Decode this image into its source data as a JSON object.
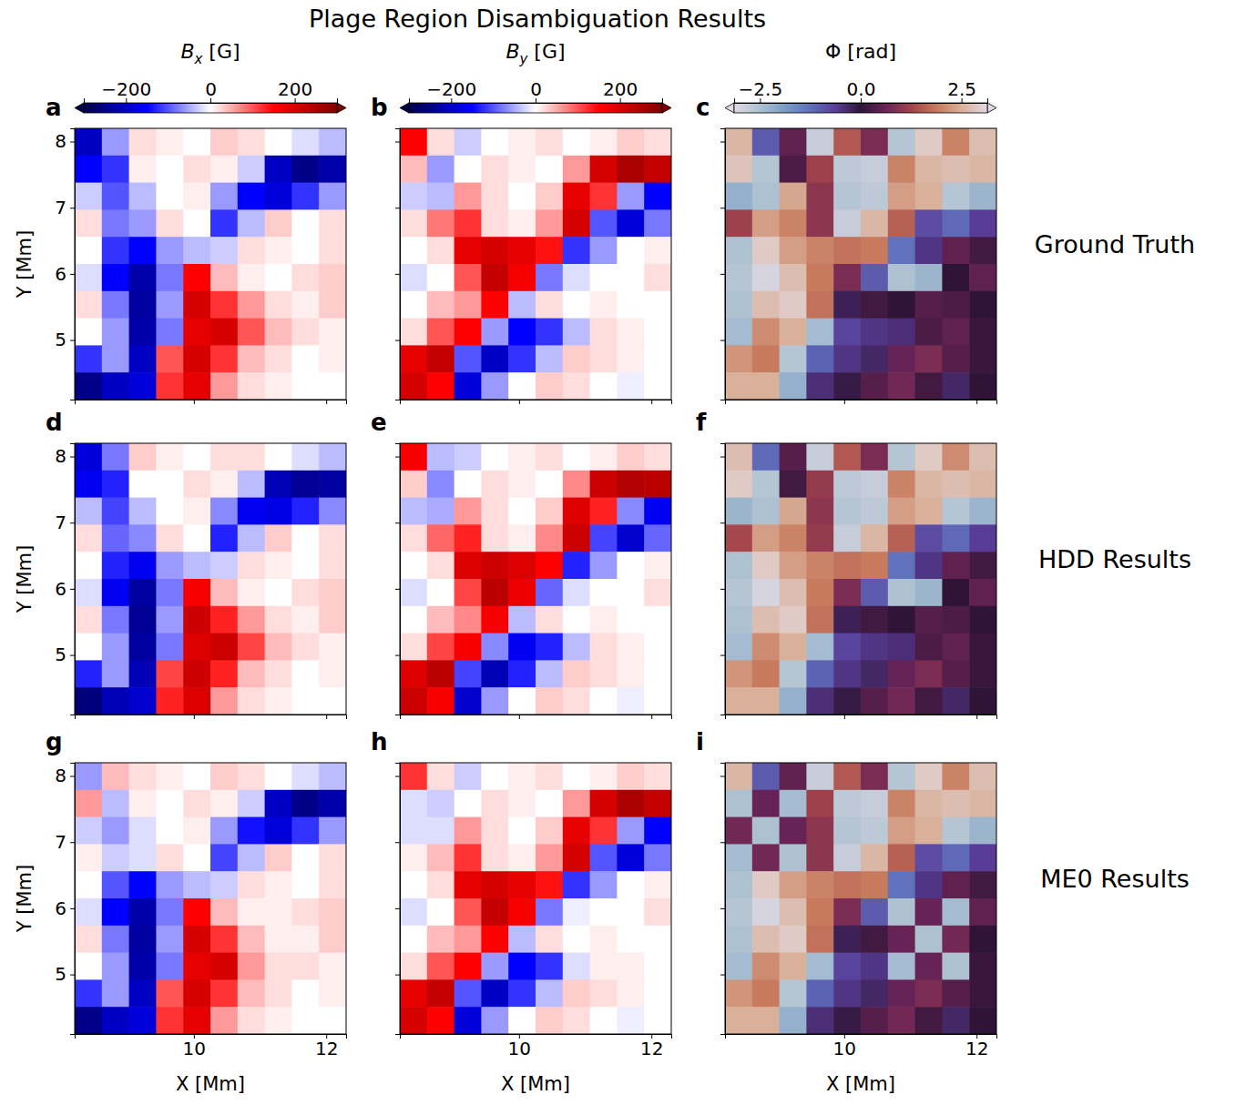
{
  "title": "Plage Region Disambiguation Results",
  "row_labels": [
    "Ground Truth",
    "HDD Results",
    "ME0 Results"
  ],
  "colorbars": [
    {
      "label": "Bx [G]",
      "range": [
        -300,
        300
      ],
      "ticks": [
        {
          "value": -200,
          "label": "−200"
        },
        0,
        200
      ]
    },
    {
      "label": "By [G]",
      "range": [
        -300,
        300
      ],
      "ticks": [
        {
          "value": -200,
          "label": "−200"
        },
        0,
        200
      ]
    },
    {
      "label": "Φ [rad]",
      "range": [
        -3.1416,
        3.1416
      ],
      "ticks": [
        {
          "value": -2.5,
          "label": "−2.5"
        },
        {
          "value": 0,
          "label": "0.0"
        },
        2.5
      ]
    }
  ],
  "chart_data": [
    {
      "type": "heatmap",
      "panel": "a",
      "xlim": [
        8.2,
        12.3
      ],
      "ylim": [
        4.1,
        8.2
      ],
      "xticks": [
        10,
        12
      ],
      "yticks": [
        5,
        6,
        7,
        8
      ],
      "tick_labels": "y",
      "ylabel": "Y [Mm]",
      "z": [
        [
          -200,
          -60,
          20,
          10,
          0,
          30,
          20,
          0,
          -20,
          -40
        ],
        [
          -150,
          -120,
          10,
          0,
          20,
          10,
          -30,
          -200,
          -250,
          -220
        ],
        [
          -30,
          -100,
          -40,
          0,
          10,
          -60,
          -150,
          -180,
          -120,
          -60
        ],
        [
          20,
          -80,
          -60,
          20,
          0,
          -120,
          -40,
          30,
          0,
          20
        ],
        [
          0,
          -120,
          -150,
          -60,
          -40,
          -30,
          20,
          10,
          0,
          20
        ],
        [
          -20,
          -150,
          -220,
          -80,
          150,
          40,
          10,
          0,
          20,
          30
        ],
        [
          20,
          -80,
          -230,
          -60,
          200,
          120,
          60,
          20,
          10,
          30
        ],
        [
          0,
          -60,
          -220,
          -80,
          180,
          200,
          100,
          40,
          20,
          10
        ],
        [
          -120,
          -60,
          -200,
          100,
          200,
          120,
          40,
          20,
          0,
          10
        ],
        [
          -250,
          -200,
          -180,
          120,
          180,
          60,
          20,
          10,
          0,
          0
        ]
      ]
    },
    {
      "type": "heatmap",
      "panel": "b",
      "xlim": [
        8.2,
        12.3
      ],
      "ylim": [
        4.1,
        8.2
      ],
      "xticks": [
        10,
        12
      ],
      "yticks": [
        5,
        6,
        7,
        8
      ],
      "tick_labels": false,
      "z": [
        [
          150,
          20,
          -30,
          0,
          10,
          20,
          0,
          10,
          30,
          20
        ],
        [
          40,
          -60,
          0,
          20,
          10,
          0,
          60,
          200,
          250,
          220
        ],
        [
          -30,
          -40,
          60,
          20,
          0,
          30,
          180,
          120,
          -60,
          -150
        ],
        [
          20,
          80,
          120,
          20,
          10,
          60,
          200,
          -100,
          -180,
          -80
        ],
        [
          0,
          20,
          180,
          200,
          180,
          140,
          -120,
          -60,
          0,
          10
        ],
        [
          -20,
          0,
          100,
          220,
          160,
          -80,
          -20,
          0,
          0,
          20
        ],
        [
          0,
          40,
          60,
          150,
          -40,
          20,
          0,
          10,
          0,
          0
        ],
        [
          20,
          100,
          150,
          -60,
          -150,
          -120,
          -40,
          20,
          10,
          0
        ],
        [
          180,
          220,
          -100,
          -200,
          -120,
          -40,
          30,
          20,
          10,
          0
        ],
        [
          200,
          150,
          -180,
          -60,
          0,
          30,
          20,
          0,
          -10,
          0
        ]
      ]
    },
    {
      "type": "heatmap",
      "panel": "c",
      "xlim": [
        8.2,
        12.3
      ],
      "ylim": [
        4.1,
        8.2
      ],
      "xticks": [
        10,
        12
      ],
      "yticks": [
        5,
        6,
        7,
        8
      ],
      "tick_labels": false,
      "z": [
        [
          2.6,
          -1.0,
          0.5,
          -2.8,
          1.5,
          0.8,
          -2.6,
          2.9,
          2.0,
          2.7
        ],
        [
          2.8,
          -2.6,
          0.3,
          1.2,
          -2.7,
          -2.8,
          2.0,
          2.6,
          2.7,
          2.6
        ],
        [
          -2.2,
          -2.5,
          2.4,
          1.0,
          -2.6,
          -2.7,
          2.3,
          2.5,
          -2.6,
          -2.3
        ],
        [
          1.2,
          2.3,
          2.0,
          1.0,
          -2.8,
          2.6,
          1.6,
          -0.8,
          -1.2,
          -0.6
        ],
        [
          -2.5,
          2.9,
          2.3,
          2.0,
          1.8,
          1.9,
          -1.3,
          -0.5,
          0.5,
          0.2
        ],
        [
          -2.6,
          -3.0,
          2.7,
          1.9,
          0.8,
          -1.0,
          -2.5,
          -2.3,
          0.0,
          0.5
        ],
        [
          -2.5,
          2.7,
          2.9,
          1.8,
          -0.2,
          0.2,
          0.0,
          0.4,
          0.3,
          0.0
        ],
        [
          -2.4,
          2.1,
          2.5,
          -2.4,
          -0.7,
          -0.5,
          -0.4,
          0.3,
          0.5,
          0.1
        ],
        [
          2.2,
          1.9,
          -2.6,
          -1.1,
          -0.5,
          -0.3,
          0.6,
          0.8,
          0.4,
          0.1
        ],
        [
          2.5,
          2.5,
          -2.2,
          -0.4,
          -0.1,
          0.4,
          0.7,
          0.2,
          -0.3,
          0.0
        ]
      ]
    },
    {
      "type": "heatmap",
      "panel": "d",
      "xlim": [
        8.2,
        12.3
      ],
      "ylim": [
        4.1,
        8.2
      ],
      "xticks": [
        10,
        12
      ],
      "yticks": [
        5,
        6,
        7,
        8
      ],
      "tick_labels": "y",
      "ylabel": "Y [Mm]",
      "z": [
        [
          -180,
          -80,
          30,
          10,
          0,
          20,
          20,
          0,
          -20,
          -40
        ],
        [
          -160,
          -130,
          0,
          0,
          20,
          10,
          -40,
          -210,
          -240,
          -230
        ],
        [
          -40,
          -110,
          -40,
          0,
          10,
          -70,
          -160,
          -170,
          -130,
          -70
        ],
        [
          20,
          -90,
          -70,
          20,
          0,
          -130,
          -40,
          30,
          0,
          20
        ],
        [
          0,
          -130,
          -160,
          -60,
          -40,
          -30,
          20,
          10,
          0,
          20
        ],
        [
          -20,
          -160,
          -230,
          -80,
          160,
          40,
          10,
          0,
          20,
          30
        ],
        [
          20,
          -80,
          -240,
          -60,
          210,
          130,
          60,
          20,
          10,
          30
        ],
        [
          0,
          -60,
          -230,
          -80,
          190,
          210,
          110,
          40,
          20,
          10
        ],
        [
          -130,
          -60,
          -210,
          110,
          210,
          130,
          40,
          20,
          0,
          10
        ],
        [
          -260,
          -210,
          -190,
          130,
          190,
          60,
          20,
          10,
          0,
          0
        ]
      ]
    },
    {
      "type": "heatmap",
      "panel": "e",
      "xlim": [
        8.2,
        12.3
      ],
      "ylim": [
        4.1,
        8.2
      ],
      "xticks": [
        10,
        12
      ],
      "yticks": [
        5,
        6,
        7,
        8
      ],
      "tick_labels": false,
      "z": [
        [
          160,
          -40,
          -30,
          0,
          10,
          20,
          0,
          10,
          30,
          20
        ],
        [
          30,
          -70,
          0,
          20,
          10,
          0,
          70,
          210,
          240,
          230
        ],
        [
          -40,
          -50,
          60,
          20,
          0,
          30,
          190,
          130,
          -70,
          -160
        ],
        [
          20,
          90,
          130,
          20,
          10,
          70,
          210,
          -110,
          -190,
          -90
        ],
        [
          0,
          20,
          190,
          210,
          190,
          150,
          -130,
          -60,
          0,
          10
        ],
        [
          -20,
          0,
          110,
          230,
          170,
          -90,
          -20,
          0,
          0,
          20
        ],
        [
          0,
          40,
          70,
          160,
          -40,
          20,
          0,
          10,
          0,
          0
        ],
        [
          20,
          110,
          160,
          -70,
          -160,
          -130,
          -40,
          20,
          10,
          0
        ],
        [
          190,
          230,
          -110,
          -210,
          -130,
          -40,
          30,
          20,
          10,
          0
        ],
        [
          210,
          160,
          -190,
          -60,
          0,
          30,
          20,
          0,
          -10,
          0
        ]
      ]
    },
    {
      "type": "heatmap",
      "panel": "f",
      "xlim": [
        8.2,
        12.3
      ],
      "ylim": [
        4.1,
        8.2
      ],
      "xticks": [
        10,
        12
      ],
      "yticks": [
        5,
        6,
        7,
        8
      ],
      "tick_labels": false,
      "z": [
        [
          2.7,
          -1.2,
          0.4,
          -2.8,
          1.5,
          0.8,
          -2.6,
          2.9,
          2.1,
          2.7
        ],
        [
          2.9,
          -2.6,
          0.2,
          1.1,
          -2.7,
          -2.8,
          2.0,
          2.6,
          2.7,
          2.6
        ],
        [
          -2.3,
          -2.5,
          2.4,
          1.0,
          -2.6,
          -2.7,
          2.3,
          2.5,
          -2.6,
          -2.3
        ],
        [
          1.3,
          2.3,
          2.0,
          1.1,
          -2.8,
          2.6,
          1.6,
          -0.8,
          -1.2,
          -0.6
        ],
        [
          -2.5,
          2.9,
          2.3,
          2.0,
          1.8,
          1.9,
          -1.3,
          -0.5,
          0.5,
          0.2
        ],
        [
          -2.6,
          -3.0,
          2.7,
          1.9,
          0.8,
          -1.0,
          -2.5,
          -2.3,
          0.0,
          0.5
        ],
        [
          -2.5,
          2.7,
          2.9,
          1.8,
          -0.2,
          0.2,
          0.0,
          0.4,
          0.3,
          0.0
        ],
        [
          -2.4,
          2.1,
          2.5,
          -2.4,
          -0.7,
          -0.5,
          -0.4,
          0.3,
          0.5,
          0.1
        ],
        [
          2.2,
          1.9,
          -2.6,
          -1.1,
          -0.5,
          -0.3,
          0.6,
          0.8,
          0.4,
          0.1
        ],
        [
          2.5,
          2.5,
          -2.2,
          -0.4,
          -0.1,
          0.4,
          0.7,
          0.2,
          -0.3,
          0.0
        ]
      ]
    },
    {
      "type": "heatmap",
      "panel": "g",
      "xlim": [
        8.2,
        12.3
      ],
      "ylim": [
        4.1,
        8.2
      ],
      "xticks": [
        10,
        12
      ],
      "yticks": [
        5,
        6,
        7,
        8
      ],
      "tick_labels": true,
      "xlabel": "X [Mm]",
      "ylabel": "Y [Mm]",
      "z": [
        [
          -60,
          40,
          20,
          10,
          0,
          30,
          20,
          0,
          -20,
          -40
        ],
        [
          60,
          -40,
          10,
          0,
          20,
          10,
          -30,
          -200,
          -250,
          -220
        ],
        [
          -30,
          -60,
          -20,
          0,
          10,
          -60,
          -140,
          -180,
          -120,
          -60
        ],
        [
          10,
          -30,
          -20,
          20,
          0,
          -110,
          -40,
          30,
          0,
          20
        ],
        [
          0,
          -100,
          -150,
          -60,
          -40,
          -30,
          20,
          10,
          0,
          20
        ],
        [
          -20,
          -150,
          -220,
          -80,
          150,
          40,
          10,
          10,
          20,
          30
        ],
        [
          20,
          -80,
          -230,
          -60,
          200,
          120,
          40,
          10,
          10,
          30
        ],
        [
          0,
          -60,
          -220,
          -80,
          180,
          200,
          60,
          20,
          20,
          10
        ],
        [
          -120,
          -60,
          -200,
          100,
          200,
          120,
          40,
          20,
          0,
          10
        ],
        [
          -250,
          -200,
          -180,
          120,
          180,
          60,
          20,
          10,
          0,
          0
        ]
      ]
    },
    {
      "type": "heatmap",
      "panel": "h",
      "xlim": [
        8.2,
        12.3
      ],
      "ylim": [
        4.1,
        8.2
      ],
      "xticks": [
        10,
        12
      ],
      "yticks": [
        5,
        6,
        7,
        8
      ],
      "tick_labels": "x",
      "xlabel": "X [Mm]",
      "z": [
        [
          120,
          20,
          -30,
          0,
          10,
          20,
          0,
          10,
          30,
          20
        ],
        [
          -20,
          -30,
          0,
          20,
          10,
          0,
          60,
          200,
          250,
          220
        ],
        [
          -20,
          -20,
          60,
          20,
          0,
          30,
          180,
          120,
          -60,
          -150
        ],
        [
          10,
          40,
          120,
          20,
          10,
          60,
          200,
          -100,
          -180,
          -80
        ],
        [
          0,
          20,
          180,
          200,
          180,
          140,
          -120,
          -60,
          0,
          10
        ],
        [
          -20,
          0,
          100,
          220,
          160,
          -80,
          -10,
          0,
          0,
          20
        ],
        [
          0,
          40,
          60,
          150,
          -40,
          20,
          0,
          10,
          0,
          0
        ],
        [
          20,
          100,
          150,
          -60,
          -150,
          -120,
          -20,
          10,
          10,
          0
        ],
        [
          180,
          220,
          -100,
          -200,
          -120,
          -40,
          30,
          20,
          10,
          0
        ],
        [
          200,
          150,
          -180,
          -60,
          0,
          30,
          20,
          0,
          -10,
          0
        ]
      ]
    },
    {
      "type": "heatmap",
      "panel": "i",
      "xlim": [
        8.2,
        12.3
      ],
      "ylim": [
        4.1,
        8.2
      ],
      "xticks": [
        10,
        12
      ],
      "yticks": [
        5,
        6,
        7,
        8
      ],
      "tick_labels": "x",
      "xlabel": "X [Mm]",
      "z": [
        [
          2.6,
          -1.0,
          0.5,
          -2.8,
          1.5,
          0.8,
          -2.6,
          2.9,
          2.0,
          2.7
        ],
        [
          -2.5,
          0.6,
          -2.4,
          1.2,
          -2.7,
          -2.8,
          2.0,
          2.6,
          2.7,
          2.6
        ],
        [
          0.7,
          -2.5,
          0.6,
          1.0,
          -2.6,
          -2.7,
          2.3,
          2.5,
          -2.6,
          -2.3
        ],
        [
          -2.4,
          0.7,
          -2.5,
          1.0,
          -2.8,
          2.6,
          1.6,
          -0.8,
          -1.2,
          -0.6
        ],
        [
          -2.5,
          2.9,
          2.3,
          2.0,
          1.8,
          1.9,
          -1.3,
          -0.5,
          0.5,
          0.2
        ],
        [
          -2.6,
          -3.0,
          2.7,
          1.9,
          0.8,
          -1.0,
          -2.5,
          0.6,
          -2.4,
          0.5
        ],
        [
          -2.5,
          2.7,
          2.9,
          1.8,
          -0.2,
          0.2,
          0.6,
          -2.5,
          0.7,
          0.0
        ],
        [
          -2.4,
          2.1,
          2.5,
          -2.4,
          -0.7,
          -0.5,
          -2.4,
          0.6,
          -2.5,
          0.1
        ],
        [
          2.2,
          1.9,
          -2.6,
          -1.1,
          -0.5,
          -0.3,
          0.6,
          0.8,
          0.4,
          0.1
        ],
        [
          2.5,
          2.5,
          -2.2,
          -0.4,
          -0.1,
          0.4,
          0.7,
          0.2,
          -0.3,
          0.0
        ]
      ]
    }
  ]
}
